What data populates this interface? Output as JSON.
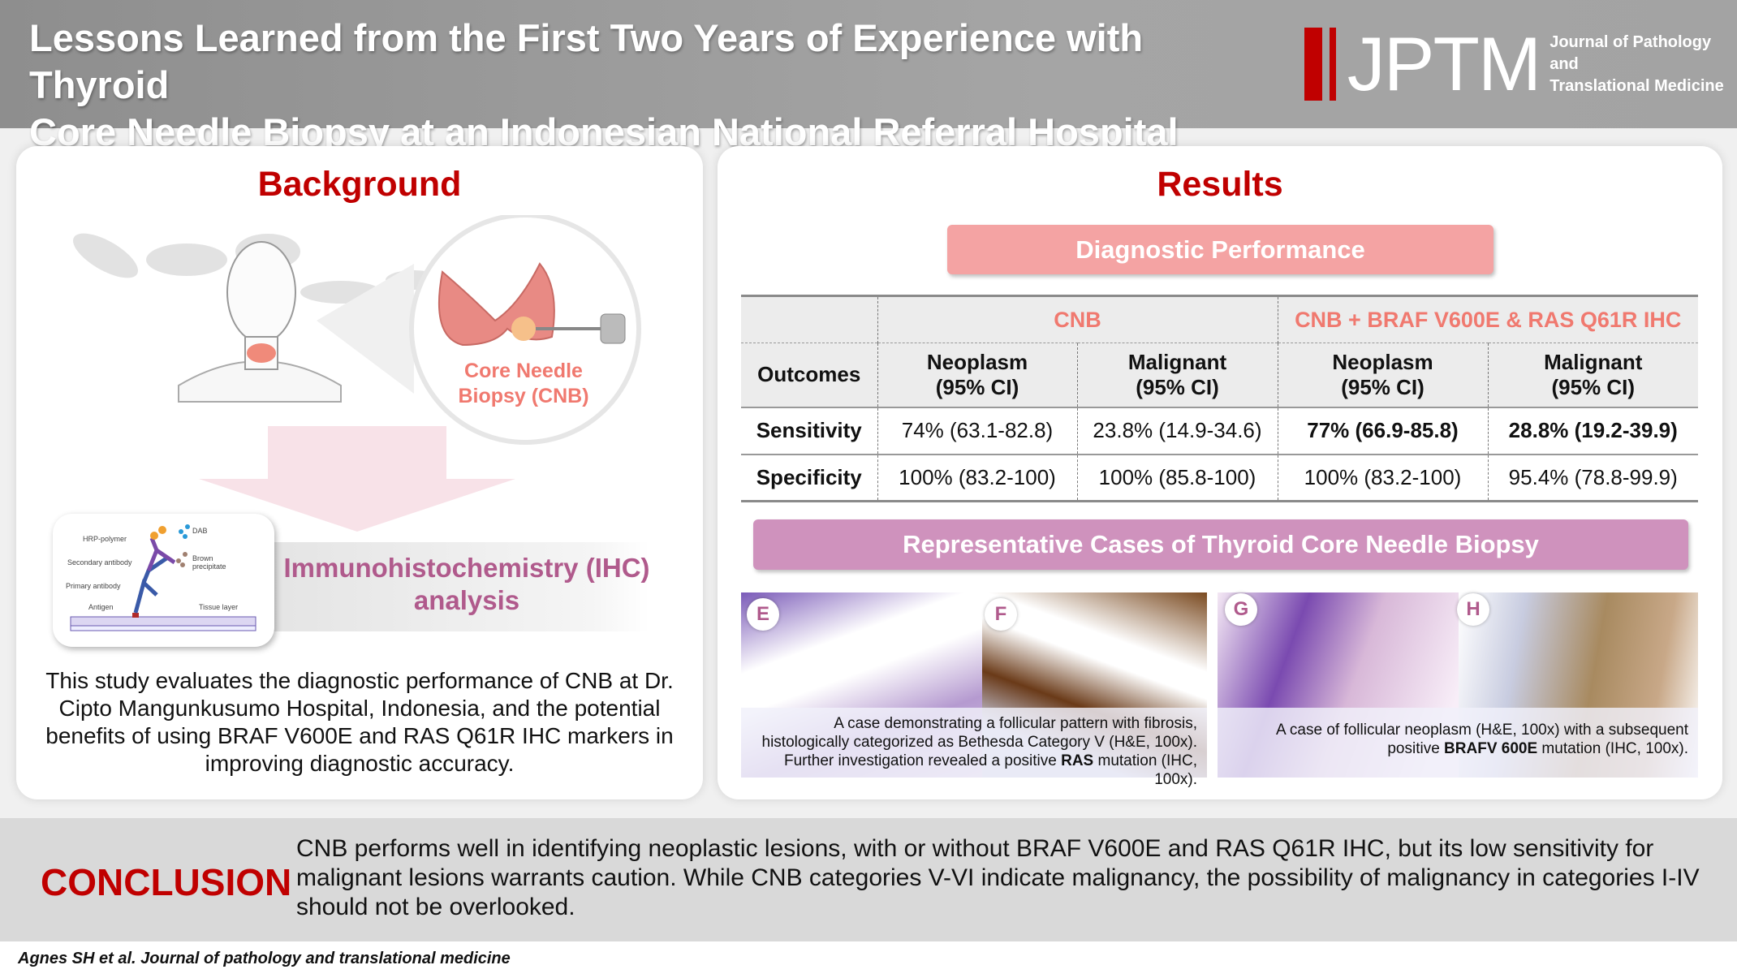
{
  "header": {
    "title_line1": "Lessons Learned from the First Two Years of Experience with Thyroid",
    "title_line2": "Core Needle Biopsy at an Indonesian National Referral Hospital",
    "logo_text": "JPTM",
    "journal_line1": "Journal of Pathology and",
    "journal_line2": "Translational Medicine"
  },
  "background": {
    "title": "Background",
    "cnb_label_line1": "Core Needle",
    "cnb_label_line2": "Biopsy (CNB)",
    "ihc_diagram": {
      "hrp": "HRP-polymer",
      "secondary": "Secondary antibody",
      "primary": "Primary antibody",
      "antigen": "Antigen",
      "dab": "DAB",
      "brown1": "Brown",
      "brown2": "precipitate",
      "tissue": "Tissue layer"
    },
    "ihc_label_line1": "Immunohistochemistry (IHC)",
    "ihc_label_line2": "analysis",
    "text": "This study evaluates the diagnostic performance of CNB at Dr. Cipto Mangunkusumo Hospital, Indonesia, and the potential benefits of using BRAF V600E and RAS Q61R IHC markers in improving diagnostic accuracy."
  },
  "results": {
    "title": "Results",
    "diag_title": "Diagnostic Performance",
    "table": {
      "group1": "CNB",
      "group2": "CNB + BRAF V600E & RAS Q61R IHC",
      "outcomes": "Outcomes",
      "cols": [
        [
          "Neoplasm",
          "(95% CI)"
        ],
        [
          "Malignant",
          "(95% CI)"
        ],
        [
          "Neoplasm",
          "(95% CI)"
        ],
        [
          "Malignant",
          "(95% CI)"
        ]
      ],
      "rows": [
        {
          "label": "Sensitivity",
          "values": [
            "74% (63.1-82.8)",
            "23.8% (14.9-34.6)",
            "77% (66.9-85.8)",
            "28.8% (19.2-39.9)"
          ]
        },
        {
          "label": "Specificity",
          "values": [
            "100% (83.2-100)",
            "100% (85.8-100)",
            "100% (83.2-100)",
            "95.4% (78.8-99.9)"
          ]
        }
      ]
    },
    "rep_title": "Representative Cases of Thyroid Core Needle Biopsy",
    "panels": [
      "E",
      "F",
      "G",
      "H"
    ],
    "caption1": {
      "pre": "A case demonstrating a follicular pattern with fibrosis, histologically categorized as Bethesda Category V (H&E, 100x). Further investigation revealed a positive ",
      "bold": "RAS",
      "post": " mutation (IHC, 100x)."
    },
    "caption2": {
      "pre": "A case of follicular neoplasm (H&E, 100x) with a subsequent positive ",
      "bold": "BRAFV 600E",
      "post": " mutation (IHC, 100x)."
    }
  },
  "conclusion": {
    "title": "CONCLUSION",
    "text": "CNB performs well in identifying neoplastic lesions, with or without BRAF V600E and RAS Q61R IHC, but its low sensitivity for malignant lesions warrants caution. While CNB categories V-VI indicate malignancy, the possibility of malignancy in categories I-IV should not be overlooked."
  },
  "citation": "Agnes SH et al. Journal of pathology and translational medicine",
  "colors": {
    "red": "#c00000",
    "pink": "#f4a3a3",
    "mauve": "#cf92bd",
    "gray": "#d9d9d9"
  }
}
